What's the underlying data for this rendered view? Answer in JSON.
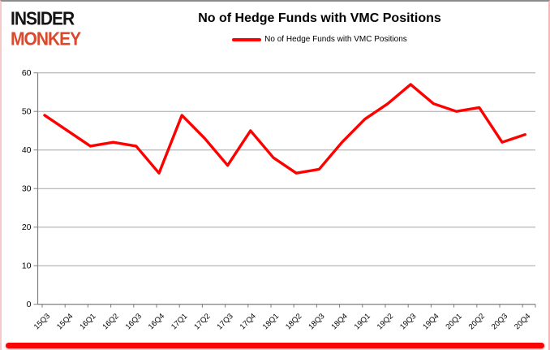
{
  "brand": {
    "line1": "INSIDER",
    "line2": "MONKEY"
  },
  "header": {
    "title": "No of Hedge Funds with VMC Positions"
  },
  "legend": {
    "label": "No of Hedge Funds with VMC Positions"
  },
  "colors": {
    "line": "#ff0000",
    "grid": "#a6a6a6",
    "axis": "#808080",
    "text": "#000000",
    "logo_black": "#141414",
    "logo_red": "#d8492e",
    "bottom_bar": "#fa0505"
  },
  "chart_data": {
    "type": "line",
    "title": "No of Hedge Funds with VMC Positions",
    "legend_entries": [
      "No of Hedge Funds with VMC Positions"
    ],
    "legend_position": "top",
    "categories": [
      "15Q3",
      "15Q4",
      "16Q1",
      "16Q2",
      "16Q3",
      "16Q4",
      "17Q1",
      "17Q2",
      "17Q3",
      "17Q4",
      "18Q1",
      "18Q2",
      "18Q3",
      "18Q4",
      "19Q1",
      "19Q2",
      "19Q3",
      "19Q4",
      "20Q1",
      "20Q2",
      "20Q3",
      "20Q4"
    ],
    "values": [
      49,
      45,
      41,
      42,
      41,
      34,
      49,
      43,
      36,
      45,
      38,
      34,
      35,
      42,
      48,
      52,
      57,
      52,
      50,
      51,
      42,
      44
    ],
    "xlabel": "",
    "ylabel": "",
    "ylim": [
      0,
      60
    ],
    "yticks": [
      0,
      10,
      20,
      30,
      40,
      50,
      60
    ],
    "grid": true,
    "line_color": "#ff0000"
  }
}
